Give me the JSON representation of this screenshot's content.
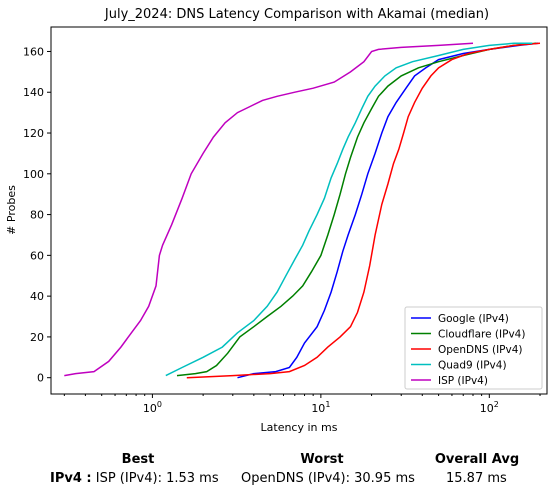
{
  "chart_data": {
    "type": "line",
    "title": "July_2024: DNS Latency Comparison with Akamai (median)",
    "xlabel": "Latency in ms",
    "ylabel": "# Probes",
    "xscale": "log",
    "xlim": [
      0.25,
      220
    ],
    "ylim": [
      -8,
      172
    ],
    "yticks": [
      0,
      20,
      40,
      60,
      80,
      100,
      120,
      140,
      160
    ],
    "xticks": [
      1,
      10,
      100
    ],
    "xtick_labels": [
      "10^0",
      "10^1",
      "10^2"
    ],
    "legend_position": "lower-right",
    "grid": false,
    "series": [
      {
        "name": "Google (IPv4)",
        "color": "#0000ff",
        "x": [
          3.2,
          4.0,
          5.4,
          6.5,
          7.2,
          8.0,
          9.5,
          10.5,
          11.5,
          12.5,
          13.5,
          14.5,
          16.0,
          17.5,
          19.0,
          21.0,
          23.0,
          25.0,
          28.0,
          32.0,
          36.0,
          42.0,
          50.0,
          70.0,
          100.0,
          150.0,
          195.0
        ],
        "y": [
          0,
          2,
          3,
          5,
          10,
          17,
          25,
          33,
          42,
          52,
          62,
          70,
          80,
          90,
          100,
          110,
          120,
          128,
          135,
          142,
          148,
          152,
          156,
          159,
          161,
          163,
          164
        ]
      },
      {
        "name": "Cloudflare (IPv4)",
        "color": "#008000",
        "x": [
          1.4,
          1.8,
          2.1,
          2.4,
          2.8,
          3.3,
          4.0,
          4.8,
          5.8,
          6.8,
          7.8,
          8.8,
          10.0,
          11.0,
          12.0,
          13.0,
          14.0,
          15.0,
          16.5,
          18.0,
          20.0,
          22.0,
          25.0,
          30.0,
          38.0,
          50.0,
          70.0,
          100.0,
          140.0,
          190.0
        ],
        "y": [
          1,
          2,
          3,
          6,
          12,
          20,
          25,
          30,
          35,
          40,
          45,
          52,
          60,
          70,
          80,
          90,
          100,
          108,
          118,
          125,
          132,
          138,
          143,
          148,
          152,
          155,
          158,
          161,
          163,
          164
        ]
      },
      {
        "name": "OpenDNS (IPv4)",
        "color": "#ff0000",
        "x": [
          1.6,
          3.0,
          5.0,
          6.5,
          8.0,
          9.5,
          11.0,
          13.0,
          15.0,
          16.5,
          18.0,
          19.5,
          21.0,
          23.0,
          25.0,
          27.0,
          29.0,
          31.0,
          33.0,
          36.0,
          40.0,
          45.0,
          50.0,
          60.0,
          75.0,
          100.0,
          140.0,
          200.0
        ],
        "y": [
          0,
          1,
          2,
          3,
          6,
          10,
          15,
          20,
          25,
          32,
          42,
          55,
          70,
          85,
          95,
          105,
          112,
          120,
          128,
          135,
          142,
          148,
          152,
          156,
          159,
          161,
          163,
          164
        ]
      },
      {
        "name": "Quad9 (IPv4)",
        "color": "#00bfbf",
        "x": [
          1.2,
          1.5,
          2.0,
          2.6,
          3.2,
          4.0,
          4.8,
          5.5,
          6.2,
          7.0,
          7.8,
          8.5,
          9.5,
          10.5,
          11.5,
          12.5,
          13.5,
          14.5,
          16.0,
          17.5,
          19.0,
          21.0,
          24.0,
          28.0,
          35.0,
          50.0,
          70.0,
          100.0,
          140.0,
          180.0
        ],
        "y": [
          1,
          5,
          10,
          15,
          22,
          28,
          35,
          42,
          50,
          58,
          65,
          72,
          80,
          88,
          98,
          105,
          112,
          118,
          125,
          132,
          138,
          143,
          148,
          152,
          155,
          158,
          161,
          163,
          164,
          164
        ]
      },
      {
        "name": "ISP (IPv4)",
        "color": "#bf00bf",
        "x": [
          0.3,
          0.35,
          0.45,
          0.55,
          0.65,
          0.75,
          0.85,
          0.95,
          1.05,
          1.1,
          1.15,
          1.3,
          1.5,
          1.7,
          2.0,
          2.3,
          2.7,
          3.2,
          3.8,
          4.5,
          5.5,
          7.0,
          9.0,
          12.0,
          15.0,
          18.0,
          20.0,
          22.0,
          30.0,
          50.0,
          80.0
        ],
        "y": [
          1,
          2,
          3,
          8,
          15,
          22,
          28,
          35,
          45,
          60,
          65,
          75,
          88,
          100,
          110,
          118,
          125,
          130,
          133,
          136,
          138,
          140,
          142,
          145,
          150,
          155,
          160,
          161,
          162,
          163,
          164
        ]
      }
    ]
  },
  "summary": {
    "best_header": "Best",
    "worst_header": "Worst",
    "avg_header": "Overall Avg",
    "row_label": "IPv4 :",
    "best_value": "ISP (IPv4): 1.53 ms",
    "worst_value": "OpenDNS (IPv4): 30.95 ms",
    "avg_value": "15.87 ms"
  }
}
